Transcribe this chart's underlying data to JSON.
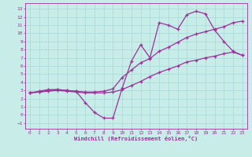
{
  "xlabel": "Windchill (Refroidissement éolien,°C)",
  "bg_color": "#c8ece8",
  "grid_color": "#a8d8d4",
  "line_color": "#993399",
  "xlim": [
    -0.5,
    23.5
  ],
  "ylim": [
    -1.7,
    13.7
  ],
  "xticks": [
    0,
    1,
    2,
    3,
    4,
    5,
    6,
    7,
    8,
    9,
    10,
    11,
    12,
    13,
    14,
    15,
    16,
    17,
    18,
    19,
    20,
    21,
    22,
    23
  ],
  "yticks": [
    -1,
    0,
    1,
    2,
    3,
    4,
    5,
    6,
    7,
    8,
    9,
    10,
    11,
    12,
    13
  ],
  "curve1_x": [
    0,
    1,
    2,
    3,
    4,
    5,
    6,
    7,
    8,
    9,
    10,
    11,
    12,
    13,
    14,
    15,
    16,
    17,
    18,
    19,
    20,
    21,
    22,
    23
  ],
  "curve1_y": [
    2.7,
    2.9,
    3.1,
    3.1,
    3.0,
    2.9,
    1.5,
    0.3,
    -0.4,
    -0.4,
    3.3,
    6.6,
    8.6,
    7.0,
    11.3,
    11.0,
    10.5,
    12.3,
    12.7,
    12.4,
    10.4,
    9.0,
    7.8,
    7.3
  ],
  "curve2_x": [
    0,
    1,
    2,
    3,
    4,
    5,
    6,
    7,
    8,
    9,
    10,
    11,
    12,
    13,
    14,
    15,
    16,
    17,
    18,
    19,
    20,
    21,
    22,
    23
  ],
  "curve2_y": [
    2.7,
    2.8,
    3.0,
    3.1,
    3.0,
    2.9,
    2.8,
    2.8,
    2.9,
    3.2,
    4.6,
    5.5,
    6.4,
    6.9,
    7.8,
    8.3,
    8.9,
    9.5,
    9.9,
    10.2,
    10.5,
    10.8,
    11.3,
    11.5
  ],
  "curve3_x": [
    0,
    1,
    2,
    3,
    4,
    5,
    6,
    7,
    8,
    9,
    10,
    11,
    12,
    13,
    14,
    15,
    16,
    17,
    18,
    19,
    20,
    21,
    22,
    23
  ],
  "curve3_y": [
    2.7,
    2.8,
    2.9,
    3.0,
    2.9,
    2.8,
    2.7,
    2.7,
    2.7,
    2.8,
    3.1,
    3.6,
    4.1,
    4.7,
    5.2,
    5.6,
    6.0,
    6.5,
    6.7,
    7.0,
    7.2,
    7.5,
    7.7,
    7.3
  ]
}
